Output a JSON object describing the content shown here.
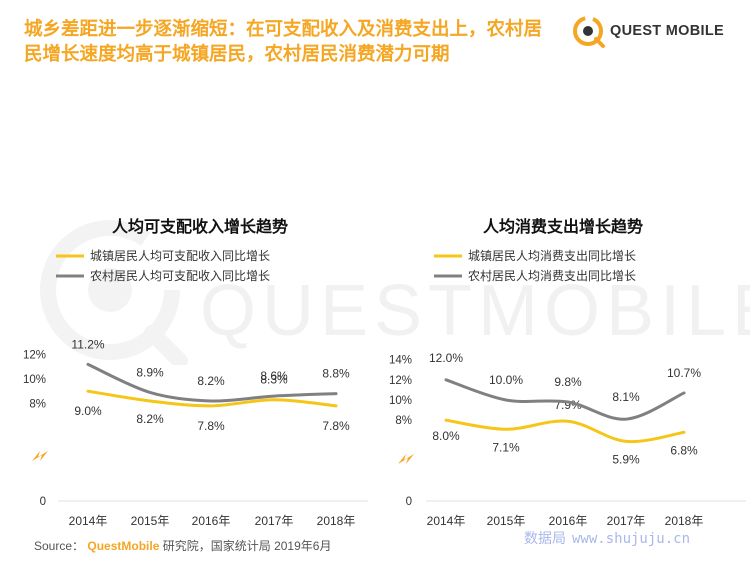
{
  "headline": {
    "line1": "城乡差距进一步逐渐缩短：在可支配收入及消费支出上，农村居",
    "line2": "民增长速度均高于城镇居民，农村居民消费潜力可期"
  },
  "logo": {
    "text": "QUEST MOBILE"
  },
  "watermark": {
    "text": "QUESTMOBILE"
  },
  "footer": {
    "source_label": "Source：",
    "brand": "QuestMobile",
    "rest": "研究院，国家统计局 2019年6月"
  },
  "site_mark": {
    "cn": "数据局",
    "url": "www.shujuju.cn"
  },
  "colors": {
    "urban": "#f5c518",
    "rural": "#808080",
    "accent": "#f5a623"
  },
  "chart_data": [
    {
      "type": "line",
      "title": "人均可支配收入增长趋势",
      "categories": [
        "2014年",
        "2015年",
        "2016年",
        "2017年",
        "2018年"
      ],
      "series": [
        {
          "name": "城镇居民人均可支配收入同比增长",
          "values": [
            9.0,
            8.2,
            7.8,
            8.3,
            7.8
          ],
          "labels": [
            "9.0%",
            "8.2%",
            "7.8%",
            "8.3%",
            "7.8%"
          ]
        },
        {
          "name": "农村居民人均可支配收入同比增长",
          "values": [
            11.2,
            8.9,
            8.2,
            8.6,
            8.8
          ],
          "labels": [
            "11.2%",
            "8.9%",
            "8.2%",
            "8.6%",
            "8.8%"
          ]
        }
      ],
      "y_ticks": [
        "0",
        "8%",
        "10%",
        "12%"
      ],
      "legend_position": "top-left",
      "smooth": true
    },
    {
      "type": "line",
      "title": "人均消费支出增长趋势",
      "categories": [
        "2014年",
        "2015年",
        "2016年",
        "2017年",
        "2018年"
      ],
      "series": [
        {
          "name": "城镇居民人均消费支出同比增长",
          "values": [
            8.0,
            7.1,
            7.9,
            5.9,
            6.8
          ],
          "labels": [
            "8.0%",
            "7.1%",
            "7.9%",
            "5.9%",
            "6.8%"
          ]
        },
        {
          "name": "农村居民人均消费支出同比增长",
          "values": [
            12.0,
            10.0,
            9.8,
            8.1,
            10.7
          ],
          "labels": [
            "12.0%",
            "10.0%",
            "9.8%",
            "8.1%",
            "10.7%"
          ]
        }
      ],
      "y_ticks": [
        "0",
        "8%",
        "10%",
        "12%",
        "14%"
      ],
      "legend_position": "top-left",
      "smooth": true
    }
  ]
}
